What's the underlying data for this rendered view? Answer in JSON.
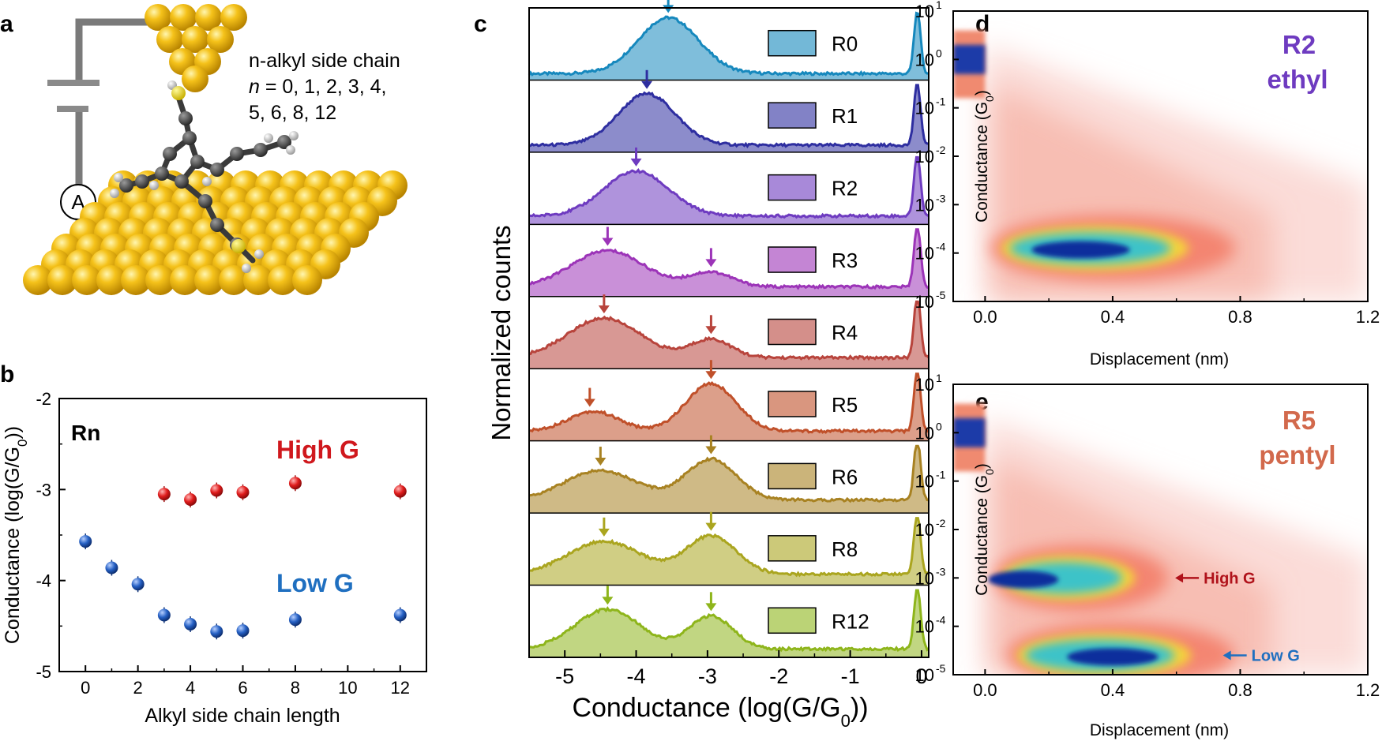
{
  "panel_labels": {
    "a": "a",
    "b": "b",
    "c": "c",
    "d": "d",
    "e": "e"
  },
  "schematic": {
    "title": "n-alkyl side chain",
    "n_label": "n",
    "values_line1": " = 0, 1, 2, 3, 4,",
    "values_line2": "5, 6, 8, 12",
    "ammeter": "A"
  },
  "colors": {
    "high": "#d0181d",
    "low": "#1f5fb4",
    "gold": "#f2b705",
    "R0": "#1688bd",
    "R1": "#2e2ea0",
    "R2": "#6e3bc0",
    "R3": "#9c34b8",
    "R4": "#b8443c",
    "R5": "#c0502a",
    "R6": "#a88222",
    "R8": "#aaa51f",
    "R12": "#8eb51b"
  },
  "chart_data": [
    {
      "panel": "b",
      "type": "scatter",
      "title": "Rn",
      "xlabel": "Alkyl side chain length",
      "ylabel": "Conductance (log(G/G",
      "ylabel_sub": "0",
      "ylabel_end": "))",
      "xlim": [
        -1,
        13
      ],
      "ylim": [
        -5,
        -2
      ],
      "xticks": [
        "0",
        "2",
        "4",
        "6",
        "8",
        "10",
        "12"
      ],
      "yticks": [
        "-2",
        "-3",
        "-4",
        "-5"
      ],
      "series": [
        {
          "name": "High G",
          "x": [
            3,
            4,
            5,
            6,
            8,
            12
          ],
          "y": [
            -3.05,
            -3.11,
            -3.01,
            -3.03,
            -2.93,
            -3.02
          ]
        },
        {
          "name": "Low G",
          "x": [
            0,
            1,
            2,
            3,
            4,
            5,
            6,
            8,
            12
          ],
          "y": [
            -3.57,
            -3.86,
            -4.04,
            -4.38,
            -4.48,
            -4.56,
            -4.55,
            -4.43,
            -4.38
          ]
        }
      ]
    },
    {
      "panel": "c",
      "type": "area",
      "xlabel": "Conductance (log(G/G",
      "xlabel_sub": "0",
      "xlabel_end": "))",
      "ylabel": "Normalized counts",
      "xlim": [
        -5.5,
        0.1
      ],
      "xticks": [
        "-5",
        "-4",
        "-3",
        "-2",
        "-1",
        "0"
      ],
      "series": [
        {
          "name": "R0",
          "peaks": [
            [
              -3.55,
              0.85,
              0.42
            ]
          ],
          "baseline": 0.05,
          "arrows": [
            -3.55
          ]
        },
        {
          "name": "R1",
          "peaks": [
            [
              -3.85,
              0.78,
              0.4
            ]
          ],
          "baseline": 0.06,
          "arrows": [
            -3.85
          ]
        },
        {
          "name": "R2",
          "peaks": [
            [
              -4.0,
              0.68,
              0.45
            ]
          ],
          "baseline": 0.08,
          "arrows": [
            -4.0
          ]
        },
        {
          "name": "R3",
          "peaks": [
            [
              -4.4,
              0.55,
              0.5
            ],
            [
              -2.95,
              0.22,
              0.3
            ]
          ],
          "baseline": 0.1,
          "arrows": [
            -4.4,
            -2.95
          ]
        },
        {
          "name": "R4",
          "peaks": [
            [
              -4.45,
              0.6,
              0.5
            ],
            [
              -2.95,
              0.28,
              0.28
            ]
          ],
          "baseline": 0.12,
          "arrows": [
            -4.45,
            -2.95
          ]
        },
        {
          "name": "R5",
          "peaks": [
            [
              -4.6,
              0.3,
              0.35
            ],
            [
              -2.95,
              0.72,
              0.35
            ]
          ],
          "baseline": 0.1,
          "arrows": [
            -4.65,
            -2.95
          ]
        },
        {
          "name": "R6",
          "peaks": [
            [
              -4.5,
              0.45,
              0.5
            ],
            [
              -2.95,
              0.62,
              0.35
            ]
          ],
          "baseline": 0.15,
          "arrows": [
            -4.5,
            -2.95
          ]
        },
        {
          "name": "R8",
          "peaks": [
            [
              -4.45,
              0.5,
              0.5
            ],
            [
              -2.95,
              0.58,
              0.35
            ]
          ],
          "baseline": 0.12,
          "arrows": [
            -4.45,
            -2.95
          ]
        },
        {
          "name": "R12",
          "peaks": [
            [
              -4.4,
              0.6,
              0.45
            ],
            [
              -2.95,
              0.5,
              0.3
            ]
          ],
          "baseline": 0.08,
          "arrows": [
            -4.4,
            -2.95
          ]
        }
      ]
    },
    {
      "panel": "d",
      "type": "heatmap",
      "title_line1": "R2",
      "title_line2": "ethyl",
      "title_color": "#6e3bc0",
      "xlabel": "Displacement (nm)",
      "ylabel": "Conductance (G",
      "ylabel_sub": "0",
      "ylabel_end": ")",
      "xlim": [
        -0.1,
        1.2
      ],
      "ylim_exp": [
        -5,
        1
      ],
      "xticks": [
        "0.0",
        "0.4",
        "0.8",
        "1.2"
      ],
      "yticks_exp": [
        "1",
        "0",
        "-1",
        "-2",
        "-3",
        "-4",
        "-5"
      ],
      "ytick_base": "10",
      "bands": [
        {
          "x": [
            0.05,
            0.75
          ],
          "log_g": -3.9,
          "peak_x": 0.3
        }
      ]
    },
    {
      "panel": "e",
      "type": "heatmap",
      "title_line1": "R5",
      "title_line2": "pentyl",
      "title_color": "#d2694c",
      "xlabel": "Displacement (nm)",
      "ylabel": "Conductance (G",
      "ylabel_sub": "0",
      "ylabel_end": ")",
      "xlim": [
        -0.1,
        1.2
      ],
      "ylim_exp": [
        -5,
        1
      ],
      "xticks": [
        "0.0",
        "0.4",
        "0.8",
        "1.2"
      ],
      "yticks_exp": [
        "1",
        "0",
        "-1",
        "-2",
        "-3",
        "-4",
        "-5"
      ],
      "ytick_base": "10",
      "bands": [
        {
          "x": [
            0.05,
            0.55
          ],
          "log_g": -3.0,
          "peak_x": 0.12
        },
        {
          "x": [
            0.1,
            0.75
          ],
          "log_g": -4.6,
          "peak_x": 0.4
        }
      ],
      "annotations": [
        {
          "text": "High G",
          "log_g": -3.0,
          "x": 0.7,
          "color": "#b0121a"
        },
        {
          "text": "Low G",
          "log_g": -4.6,
          "x": 0.85,
          "color": "#1f6fc0"
        }
      ]
    }
  ]
}
